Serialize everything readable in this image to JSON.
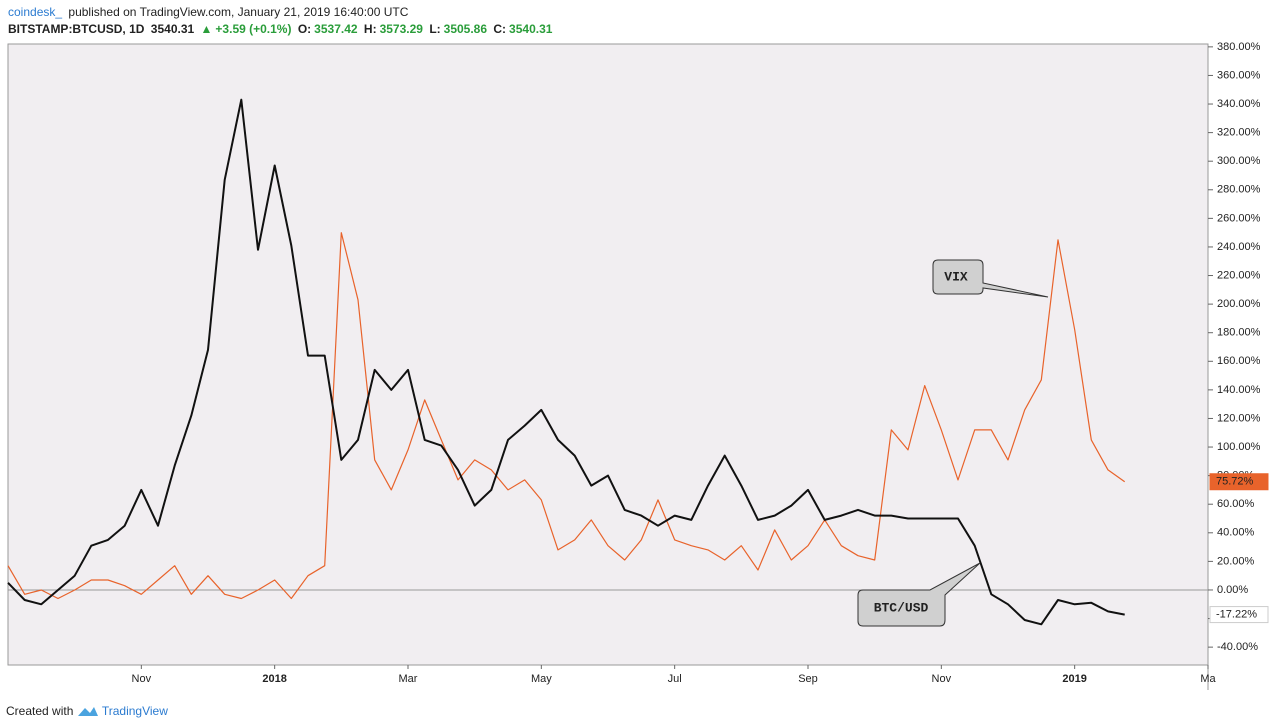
{
  "header": {
    "author": "coindesk_",
    "published": "published on TradingView.com, January 21, 2019 16:40:00 UTC",
    "symbol": "BITSTAMP:BTCUSD, 1D",
    "price": "3540.31",
    "change": "+3.59 (+0.1%)",
    "open_label": "O:",
    "open": "3537.42",
    "high_label": "H:",
    "high": "3573.29",
    "low_label": "L:",
    "low": "3505.86",
    "close_label": "C:",
    "close": "3540.31"
  },
  "chart_data": {
    "type": "line",
    "categories": [
      null,
      null,
      null,
      null,
      null,
      null,
      null,
      null,
      "Nov",
      null,
      null,
      null,
      null,
      null,
      null,
      null,
      "2018",
      null,
      null,
      null,
      null,
      null,
      null,
      null,
      "Mar",
      null,
      null,
      null,
      null,
      null,
      null,
      null,
      "May",
      null,
      null,
      null,
      null,
      null,
      null,
      null,
      "Jul",
      null,
      null,
      null,
      null,
      null,
      null,
      null,
      "Sep",
      null,
      null,
      null,
      null,
      null,
      null,
      null,
      "Nov",
      null,
      null,
      null,
      null,
      null,
      null,
      null,
      "2019",
      null,
      null,
      null,
      null,
      null,
      null,
      null,
      "Ma"
    ],
    "series": [
      {
        "name": "VIX",
        "color": "#e8632b",
        "last_value_label": "75.72%",
        "values": [
          17,
          -3,
          0,
          -6,
          0,
          7,
          7,
          3,
          -3,
          7,
          17,
          -3,
          10,
          -3,
          -6,
          0,
          7,
          -6,
          10,
          17,
          250,
          203,
          91,
          70,
          98,
          133,
          105,
          77,
          91,
          84,
          70,
          77,
          63,
          28,
          35,
          49,
          31,
          21,
          35,
          63,
          35,
          31,
          28,
          21,
          31,
          14,
          42,
          21,
          31,
          49,
          31,
          24,
          21,
          112,
          98,
          143,
          112,
          77,
          112,
          112,
          91,
          126,
          147,
          245,
          182,
          105,
          84,
          75.72,
          null,
          null,
          null,
          null,
          null
        ]
      },
      {
        "name": "BTC/USD",
        "color": "#111111",
        "last_value_label": "-17.22%",
        "values": [
          5,
          -7,
          -10,
          0,
          10,
          31,
          35,
          45,
          70,
          45,
          87,
          122,
          168,
          287,
          343,
          238,
          297,
          241,
          164,
          164,
          91,
          105,
          154,
          140,
          154,
          105,
          101,
          84,
          59,
          70,
          105,
          115,
          126,
          105,
          94,
          73,
          80,
          56,
          52,
          45,
          52,
          49,
          73,
          94,
          73,
          49,
          52,
          59,
          70,
          49,
          52,
          56,
          52,
          52,
          50,
          50,
          50,
          50,
          31,
          -3,
          -10,
          -21,
          -24,
          -7,
          -10,
          -9,
          -15,
          -17.22,
          null,
          null,
          null,
          null,
          null
        ]
      }
    ],
    "ylim": [
      -52.5,
      382
    ],
    "yticks": [
      {
        "value": -40,
        "label": "-40.00%"
      },
      {
        "value": -20,
        "label": "-20.00%"
      },
      {
        "value": 0,
        "label": "0.00%"
      },
      {
        "value": 20,
        "label": "20.00%"
      },
      {
        "value": 40,
        "label": "40.00%"
      },
      {
        "value": 60,
        "label": "60.00%"
      },
      {
        "value": 80,
        "label": "80.00%"
      },
      {
        "value": 100,
        "label": "100.00%"
      },
      {
        "value": 120,
        "label": "120.00%"
      },
      {
        "value": 140,
        "label": "140.00%"
      },
      {
        "value": 160,
        "label": "160.00%"
      },
      {
        "value": 180,
        "label": "180.00%"
      },
      {
        "value": 200,
        "label": "200.00%"
      },
      {
        "value": 220,
        "label": "220.00%"
      },
      {
        "value": 240,
        "label": "240.00%"
      },
      {
        "value": 260,
        "label": "260.00%"
      },
      {
        "value": 280,
        "label": "280.00%"
      },
      {
        "value": 300,
        "label": "300.00%"
      },
      {
        "value": 320,
        "label": "320.00%"
      },
      {
        "value": 340,
        "label": "340.00%"
      },
      {
        "value": 360,
        "label": "360.00%"
      },
      {
        "value": 380,
        "label": "380.00%"
      }
    ],
    "grid": false
  },
  "footer": {
    "created": "Created with",
    "brand": "TradingView"
  }
}
